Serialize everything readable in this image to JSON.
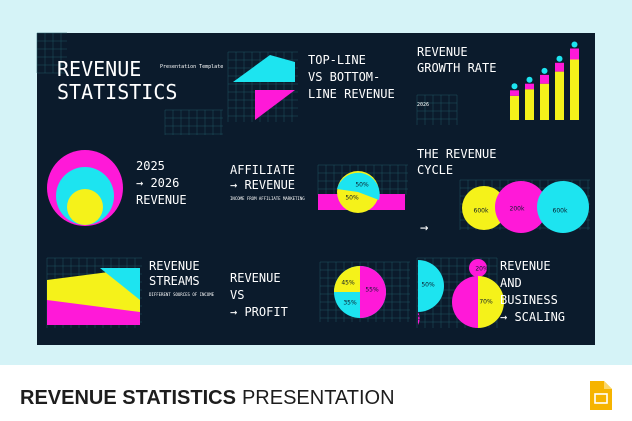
{
  "slides": [
    {
      "title": [
        "REVENUE",
        "STATISTICS"
      ],
      "subtitle": "Presentation Template"
    },
    {
      "title": [
        "TOP-LINE",
        "VS BOTTOM-",
        "LINE REVENUE"
      ]
    },
    {
      "title": [
        "REVENUE",
        "GROWTH RATE"
      ],
      "year": "2026",
      "bars": {
        "base": [
          22,
          28,
          33,
          44,
          55
        ],
        "top": [
          5,
          5,
          8,
          8,
          10
        ]
      }
    },
    {
      "title": [
        "2025",
        "→ 2026",
        "REVENUE"
      ]
    },
    {
      "title": [
        "AFFILIATE",
        "→ REVENUE"
      ],
      "caption": "INCOME FROM AFFILIATE MARKETING",
      "labels": [
        "50%",
        "50%"
      ]
    },
    {
      "title": [
        "THE REVENUE",
        "CYCLE"
      ],
      "arrow": "→",
      "labels": [
        "600k",
        "200k",
        "600k"
      ]
    },
    {
      "title": [
        "REVENUE",
        "STREAMS"
      ],
      "caption": "DIFFERENT SOURCES OF INCOME"
    },
    {
      "title": [
        "REVENUE",
        "VS",
        "→ PROFIT"
      ],
      "labels": [
        "45%",
        "55%",
        "35%"
      ]
    },
    {
      "title": [
        "REVENUE",
        "AND",
        "BUSINESS",
        "→ SCALING"
      ],
      "labels": [
        "50%",
        "20%",
        "70%",
        "50%"
      ]
    }
  ],
  "footer": {
    "bold": "REVENUE STATISTICS",
    "light": "PRESENTATION"
  }
}
